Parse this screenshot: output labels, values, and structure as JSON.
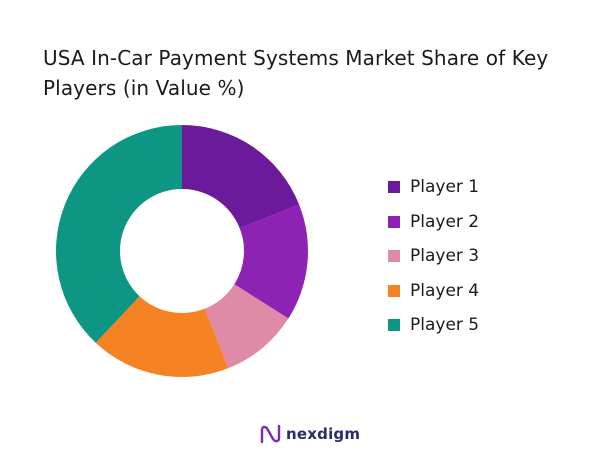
{
  "chart_data": {
    "type": "pie",
    "title": "USA In-Car Payment Systems Market Share of Key Players (in Value %)",
    "categories": [
      "Player 1",
      "Player 2",
      "Player 3",
      "Player 4",
      "Player 5"
    ],
    "values": [
      19,
      15,
      10,
      18,
      38
    ],
    "colors": [
      "#6a1a9a",
      "#8e22b5",
      "#df8aa6",
      "#f58324",
      "#0c9683"
    ],
    "donut": true,
    "legend": "right"
  },
  "brand": {
    "name": "nexdigm",
    "icon": "nexdigm-logo-icon"
  }
}
